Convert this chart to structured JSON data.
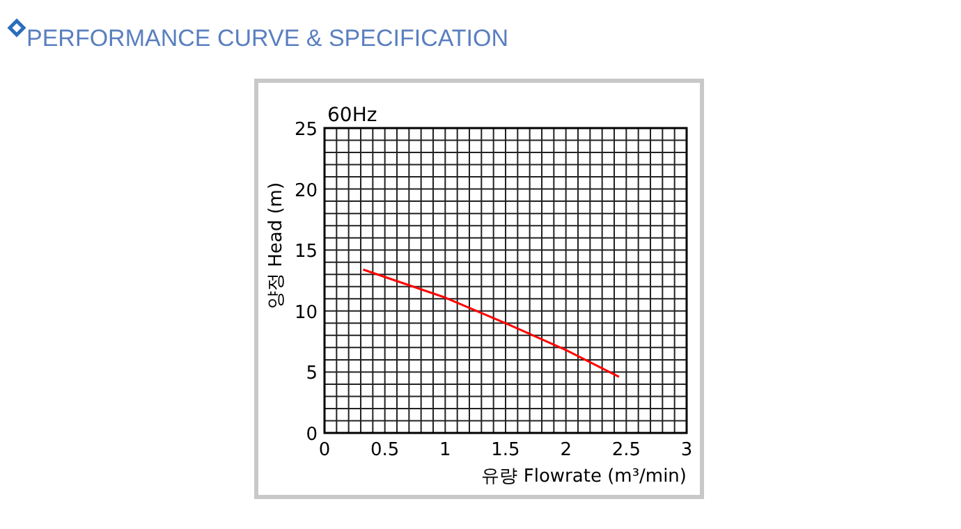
{
  "chart_data": {
    "type": "line",
    "title": "PERFORMANCE CURVE & SPECIFICATION",
    "xlabel": "유량 Flowrate (m³/min)",
    "ylabel": "양정 Head (m)",
    "annotations": [
      "60Hz"
    ],
    "x": [
      0.32,
      1,
      1.5,
      2,
      2.44
    ],
    "series": [
      {
        "color": "#ff0000",
        "values": [
          13.4,
          11.1,
          9.0,
          6.8,
          4.6
        ]
      }
    ],
    "xlim": [
      0,
      3
    ],
    "xticks": [
      0,
      0.5,
      1,
      1.5,
      2,
      2.5,
      3
    ],
    "ylim": [
      0,
      25
    ],
    "yticks": [
      0,
      5,
      10,
      15,
      20,
      25
    ],
    "grid": true
  }
}
